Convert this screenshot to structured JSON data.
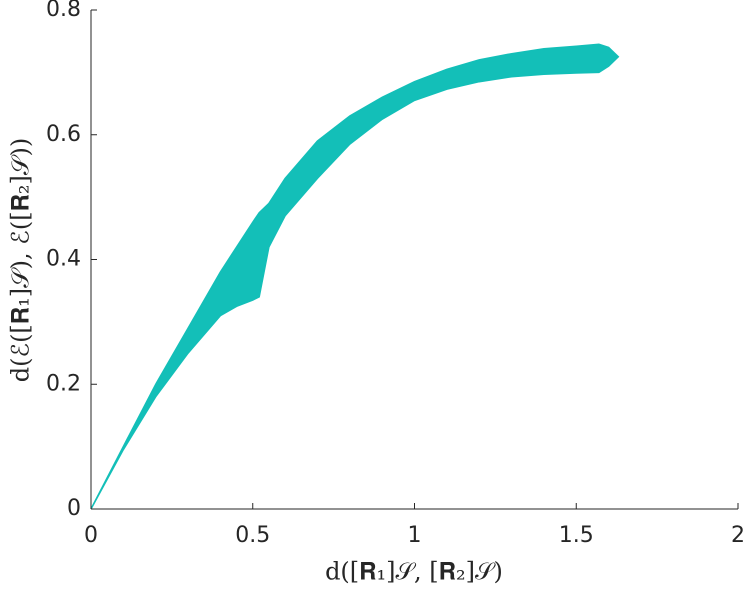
{
  "chart_data": {
    "type": "area",
    "x_label": "d([𝐑₁]𝒮, [𝐑₂]𝒮)",
    "y_label": "d(ℰ([𝐑₁]𝒮), ℰ([𝐑₂]𝒮))",
    "color": "#13bfb8",
    "x": [
      0,
      0.1,
      0.2,
      0.3,
      0.4,
      0.45,
      0.5,
      0.52,
      0.55,
      0.6,
      0.7,
      0.8,
      0.9,
      1.0,
      1.1,
      1.2,
      1.3,
      1.4,
      1.5,
      1.57,
      1.6,
      1.63
    ],
    "y_upper": [
      0,
      0.1,
      0.2,
      0.29,
      0.38,
      0.42,
      0.46,
      0.475,
      0.49,
      0.53,
      0.59,
      0.63,
      0.66,
      0.685,
      0.705,
      0.72,
      0.73,
      0.738,
      0.742,
      0.745,
      0.74,
      0.725
    ],
    "y_lower": [
      0,
      0.095,
      0.18,
      0.25,
      0.31,
      0.325,
      0.335,
      0.34,
      0.42,
      0.47,
      0.53,
      0.585,
      0.625,
      0.655,
      0.673,
      0.685,
      0.693,
      0.697,
      0.699,
      0.7,
      0.71,
      0.725
    ],
    "xlim": [
      0,
      2
    ],
    "xticks": [
      0,
      0.5,
      1,
      1.5,
      2
    ],
    "ylim": [
      0,
      0.8
    ],
    "yticks": [
      0,
      0.2,
      0.4,
      0.6,
      0.8
    ]
  }
}
